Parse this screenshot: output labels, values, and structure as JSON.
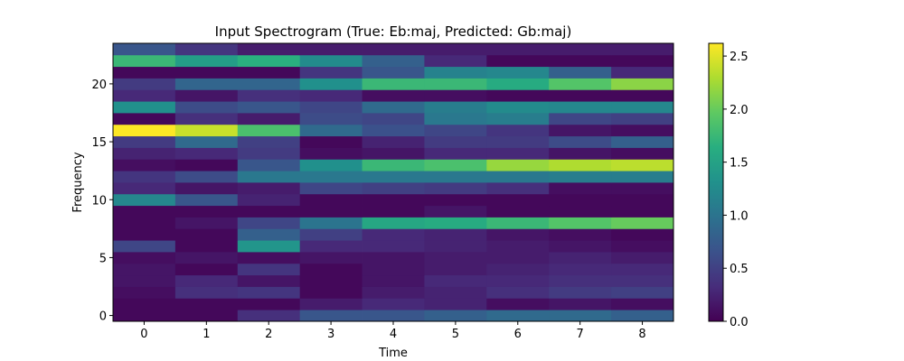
{
  "chart_data": {
    "type": "heatmap",
    "title": "Input Spectrogram (True: Eb:maj, Predicted: Gb:maj)",
    "xlabel": "Time",
    "ylabel": "Frequency",
    "x_ticks": [
      0,
      1,
      2,
      3,
      4,
      5,
      6,
      7,
      8
    ],
    "y_ticks": [
      0,
      5,
      10,
      15,
      20
    ],
    "xlim": [
      -0.5,
      8.5
    ],
    "ylim": [
      -0.5,
      23.5
    ],
    "colormap": "viridis",
    "color_range": [
      0,
      2.62
    ],
    "colorbar_ticks": [
      "0.0",
      "0.5",
      "1.0",
      "1.5",
      "2.0",
      "2.5"
    ],
    "x": [
      0,
      1,
      2,
      3,
      4,
      5,
      6,
      7,
      8
    ],
    "y": [
      0,
      1,
      2,
      3,
      4,
      5,
      6,
      7,
      8,
      9,
      10,
      11,
      12,
      13,
      14,
      15,
      16,
      17,
      18,
      19,
      20,
      21,
      22,
      23
    ],
    "values": [
      [
        0.05,
        0.05,
        0.35,
        0.7,
        0.7,
        0.8,
        0.9,
        0.9,
        0.8
      ],
      [
        0.05,
        0.05,
        0.05,
        0.2,
        0.3,
        0.25,
        0.1,
        0.15,
        0.1
      ],
      [
        0.1,
        0.35,
        0.4,
        0.05,
        0.2,
        0.25,
        0.35,
        0.45,
        0.5
      ],
      [
        0.15,
        0.3,
        0.15,
        0.05,
        0.15,
        0.3,
        0.3,
        0.35,
        0.35
      ],
      [
        0.15,
        0.05,
        0.4,
        0.05,
        0.15,
        0.2,
        0.25,
        0.3,
        0.3
      ],
      [
        0.1,
        0.15,
        0.1,
        0.15,
        0.15,
        0.2,
        0.2,
        0.25,
        0.2
      ],
      [
        0.55,
        0.05,
        1.35,
        0.3,
        0.3,
        0.25,
        0.2,
        0.15,
        0.1
      ],
      [
        0.05,
        0.05,
        0.8,
        0.5,
        0.3,
        0.25,
        0.15,
        0.1,
        0.05
      ],
      [
        0.05,
        0.15,
        0.55,
        1.0,
        1.55,
        1.6,
        1.75,
        1.9,
        2.0
      ],
      [
        0.05,
        0.05,
        0.05,
        0.05,
        0.05,
        0.15,
        0.05,
        0.05,
        0.05
      ],
      [
        1.2,
        0.7,
        0.25,
        0.05,
        0.05,
        0.05,
        0.05,
        0.05,
        0.05
      ],
      [
        0.3,
        0.15,
        0.2,
        0.55,
        0.5,
        0.45,
        0.35,
        0.1,
        0.1
      ],
      [
        0.4,
        0.6,
        1.05,
        1.05,
        1.05,
        1.05,
        1.05,
        1.1,
        1.1
      ],
      [
        0.1,
        0.05,
        0.7,
        1.3,
        1.75,
        1.85,
        2.2,
        2.3,
        2.35
      ],
      [
        0.25,
        0.3,
        0.45,
        0.1,
        0.15,
        0.3,
        0.3,
        0.15,
        0.1
      ],
      [
        0.45,
        0.9,
        0.5,
        0.05,
        0.25,
        0.45,
        0.45,
        0.6,
        0.8
      ],
      [
        2.62,
        2.4,
        1.85,
        0.9,
        0.65,
        0.55,
        0.4,
        0.15,
        0.1
      ],
      [
        0.05,
        0.35,
        0.2,
        0.6,
        0.55,
        1.05,
        1.1,
        0.55,
        0.5
      ],
      [
        1.3,
        0.6,
        0.7,
        0.55,
        0.9,
        1.1,
        1.25,
        1.2,
        1.2
      ],
      [
        0.3,
        0.15,
        0.35,
        0.3,
        0.1,
        0.1,
        0.05,
        0.05,
        0.05
      ],
      [
        0.45,
        0.85,
        0.85,
        1.3,
        1.75,
        1.75,
        1.6,
        1.9,
        2.15
      ],
      [
        0.05,
        0.05,
        0.05,
        0.4,
        0.7,
        1.15,
        1.2,
        0.8,
        0.3
      ],
      [
        1.75,
        1.45,
        1.65,
        1.25,
        0.8,
        0.3,
        0.05,
        0.05,
        0.05
      ],
      [
        0.7,
        0.4,
        0.2,
        0.2,
        0.2,
        0.2,
        0.2,
        0.2,
        0.2
      ]
    ]
  }
}
